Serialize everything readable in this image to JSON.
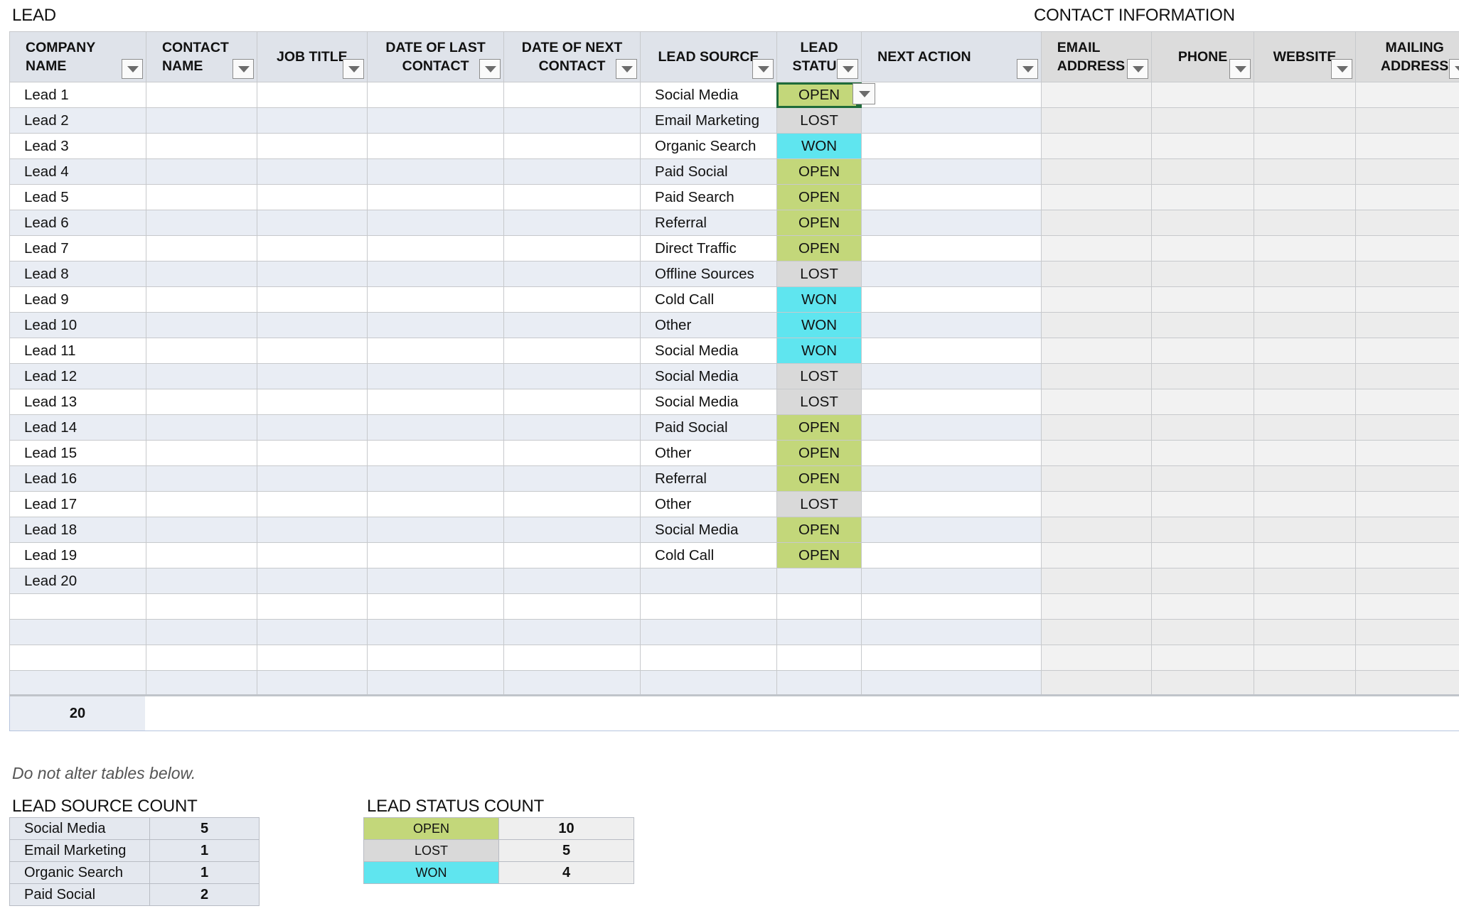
{
  "titles": {
    "lead": "LEAD",
    "contact_info": "CONTACT INFORMATION"
  },
  "columns": [
    {
      "label_line1": "COMPANY",
      "label_line2": "NAME"
    },
    {
      "label_line1": "CONTACT",
      "label_line2": "NAME"
    },
    {
      "label_line1": "JOB TITLE",
      "label_line2": ""
    },
    {
      "label_line1": "DATE OF LAST",
      "label_line2": "CONTACT"
    },
    {
      "label_line1": "DATE OF NEXT",
      "label_line2": "CONTACT"
    },
    {
      "label_line1": "LEAD SOURCE",
      "label_line2": ""
    },
    {
      "label_line1": "LEAD",
      "label_line2": "STATUS"
    },
    {
      "label_line1": "NEXT ACTION",
      "label_line2": ""
    },
    {
      "label_line1": "EMAIL",
      "label_line2": "ADDRESS"
    },
    {
      "label_line1": "PHONE",
      "label_line2": ""
    },
    {
      "label_line1": "WEBSITE",
      "label_line2": ""
    },
    {
      "label_line1": "MAILING",
      "label_line2": "ADDRESS"
    }
  ],
  "rows": [
    {
      "company": "Lead 1",
      "source": "Social Media",
      "status": "OPEN"
    },
    {
      "company": "Lead 2",
      "source": "Email Marketing",
      "status": "LOST"
    },
    {
      "company": "Lead 3",
      "source": "Organic Search",
      "status": "WON"
    },
    {
      "company": "Lead 4",
      "source": "Paid Social",
      "status": "OPEN"
    },
    {
      "company": "Lead 5",
      "source": "Paid Search",
      "status": "OPEN"
    },
    {
      "company": "Lead 6",
      "source": "Referral",
      "status": "OPEN"
    },
    {
      "company": "Lead 7",
      "source": "Direct Traffic",
      "status": "OPEN"
    },
    {
      "company": "Lead 8",
      "source": "Offline Sources",
      "status": "LOST"
    },
    {
      "company": "Lead 9",
      "source": "Cold Call",
      "status": "WON"
    },
    {
      "company": "Lead 10",
      "source": "Other",
      "status": "WON"
    },
    {
      "company": "Lead 11",
      "source": "Social Media",
      "status": "WON"
    },
    {
      "company": "Lead 12",
      "source": "Social Media",
      "status": "LOST"
    },
    {
      "company": "Lead 13",
      "source": "Social Media",
      "status": "LOST"
    },
    {
      "company": "Lead 14",
      "source": "Paid Social",
      "status": "OPEN"
    },
    {
      "company": "Lead 15",
      "source": "Other",
      "status": "OPEN"
    },
    {
      "company": "Lead 16",
      "source": "Referral",
      "status": "OPEN"
    },
    {
      "company": "Lead 17",
      "source": "Other",
      "status": "LOST"
    },
    {
      "company": "Lead 18",
      "source": "Social Media",
      "status": "OPEN"
    },
    {
      "company": "Lead 19",
      "source": "Cold Call",
      "status": "OPEN"
    },
    {
      "company": "Lead 20",
      "source": "",
      "status": ""
    },
    {
      "company": "",
      "source": "",
      "status": ""
    },
    {
      "company": "",
      "source": "",
      "status": ""
    },
    {
      "company": "",
      "source": "",
      "status": ""
    },
    {
      "company": "",
      "source": "",
      "status": ""
    }
  ],
  "total_count": "20",
  "note": "Do not alter tables below.",
  "lead_source_count": {
    "title": "LEAD SOURCE COUNT",
    "items": [
      {
        "name": "Social Media",
        "count": "5"
      },
      {
        "name": "Email Marketing",
        "count": "1"
      },
      {
        "name": "Organic Search",
        "count": "1"
      },
      {
        "name": "Paid Social",
        "count": "2"
      }
    ]
  },
  "lead_status_count": {
    "title": "LEAD STATUS COUNT",
    "items": [
      {
        "name": "OPEN",
        "count": "10"
      },
      {
        "name": "LOST",
        "count": "5"
      },
      {
        "name": "WON",
        "count": "4"
      }
    ]
  },
  "colors": {
    "open": "#c3d77a",
    "lost": "#d9d9d9",
    "won": "#5fe5ef",
    "header": "#dfe3ea",
    "band": "#e9edf4",
    "selection": "#1e6b3a"
  }
}
